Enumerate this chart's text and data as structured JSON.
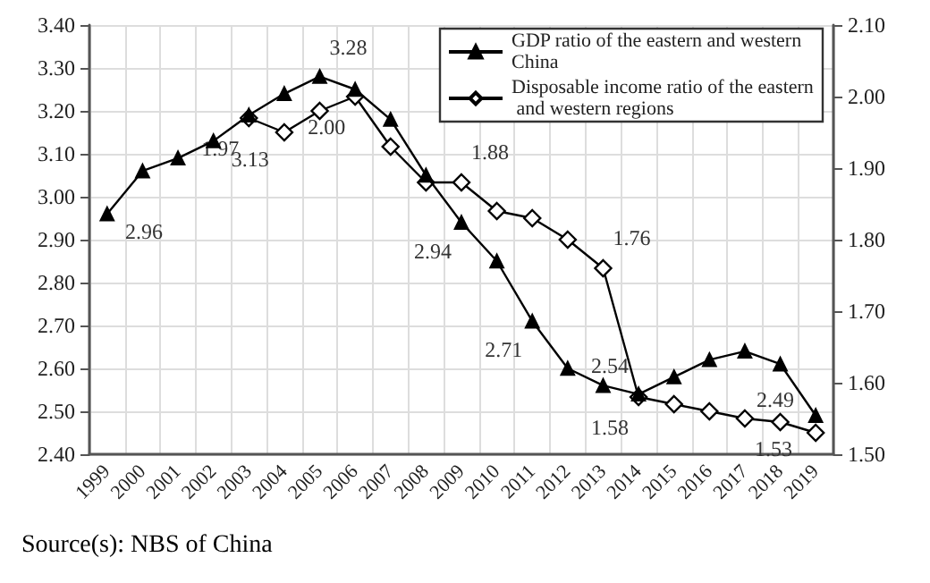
{
  "chart_data": {
    "type": "line",
    "categories": [
      "1999",
      "2000",
      "2001",
      "2002",
      "2003",
      "2004",
      "2005",
      "2006",
      "2007",
      "2008",
      "2009",
      "2010",
      "2011",
      "2012",
      "2013",
      "2014",
      "2015",
      "2016",
      "2017",
      "2018",
      "2019"
    ],
    "series": [
      {
        "name": "GDP ratio of the eastern and western China",
        "color": "#000000",
        "marker": "triangle",
        "values": [
          2.96,
          3.06,
          3.09,
          3.13,
          3.19,
          3.24,
          3.28,
          3.25,
          3.18,
          3.05,
          2.94,
          2.85,
          2.71,
          2.6,
          2.56,
          2.54,
          2.58,
          2.62,
          2.64,
          2.61,
          2.49
        ],
        "value_labels": [
          "2.96",
          null,
          null,
          "3.13",
          null,
          null,
          "3.28",
          null,
          null,
          null,
          "2.94",
          null,
          "2.71",
          null,
          null,
          "2.54",
          null,
          null,
          null,
          null,
          "2.49"
        ]
      },
      {
        "name": "Disposable income ratio of the eastern and western regions",
        "color": "#000000",
        "marker": "diamond",
        "axis": "y2",
        "values": [
          null,
          null,
          null,
          null,
          1.97,
          1.95,
          1.98,
          2.0,
          1.93,
          1.88,
          1.88,
          1.84,
          1.83,
          1.8,
          1.76,
          1.58,
          1.57,
          1.56,
          1.55,
          1.545,
          1.53
        ],
        "value_labels": [
          null,
          null,
          null,
          null,
          "1.97",
          null,
          null,
          "2.00",
          null,
          null,
          "1.88",
          null,
          null,
          null,
          "1.76",
          "1.58",
          null,
          null,
          null,
          null,
          "1.53"
        ]
      }
    ],
    "ylim": [
      2.4,
      3.4
    ],
    "yticks": [
      {
        "value": 2.4,
        "label": "2.40"
      },
      {
        "value": 2.5,
        "label": "2.50"
      },
      {
        "value": 2.6,
        "label": "2.60"
      },
      {
        "value": 2.7,
        "label": "2.70"
      },
      {
        "value": 2.8,
        "label": "2.80"
      },
      {
        "value": 2.9,
        "label": "2.90"
      },
      {
        "value": 3.0,
        "label": "3.00"
      },
      {
        "value": 3.1,
        "label": "3.10"
      },
      {
        "value": 3.2,
        "label": "3.20"
      },
      {
        "value": 3.3,
        "label": "3.30"
      },
      {
        "value": 3.4,
        "label": "3.40"
      }
    ],
    "y2lim": [
      1.5,
      2.1
    ],
    "y2ticks": [
      {
        "value": 1.5,
        "label": "1.50"
      },
      {
        "value": 1.6,
        "label": "1.60"
      },
      {
        "value": 1.7,
        "label": "1.70"
      },
      {
        "value": 1.8,
        "label": "1.80"
      },
      {
        "value": 1.9,
        "label": "1.90"
      },
      {
        "value": 2.0,
        "label": "2.00"
      },
      {
        "value": 2.1,
        "label": "2.10"
      }
    ],
    "grid": true,
    "legend": "top right",
    "line_style": "solid",
    "annotations": [
      "Source(s): NBS of China"
    ]
  }
}
